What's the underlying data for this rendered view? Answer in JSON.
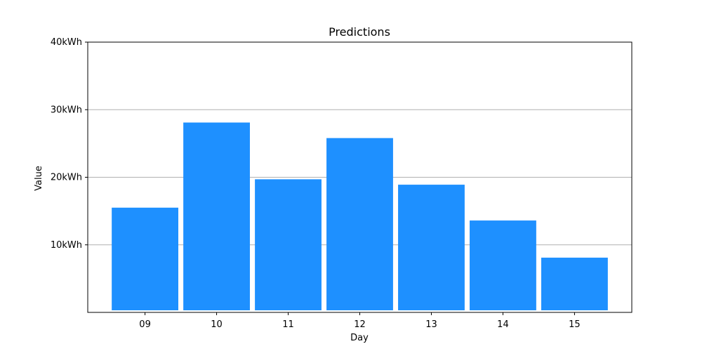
{
  "chart_data": {
    "type": "bar",
    "title": "Predictions",
    "xlabel": "Day",
    "ylabel": "Value",
    "categories": [
      "09",
      "10",
      "11",
      "12",
      "13",
      "14",
      "15"
    ],
    "values": [
      15.5,
      28.1,
      19.7,
      25.8,
      18.9,
      13.6,
      8.1
    ],
    "ylim": [
      0,
      40
    ],
    "yticks": [
      10,
      20,
      30,
      40
    ],
    "ytick_labels": [
      "10kWh",
      "20kWh",
      "30kWh",
      "40kWh"
    ],
    "grid": true,
    "bar_color": "#1e90ff"
  }
}
